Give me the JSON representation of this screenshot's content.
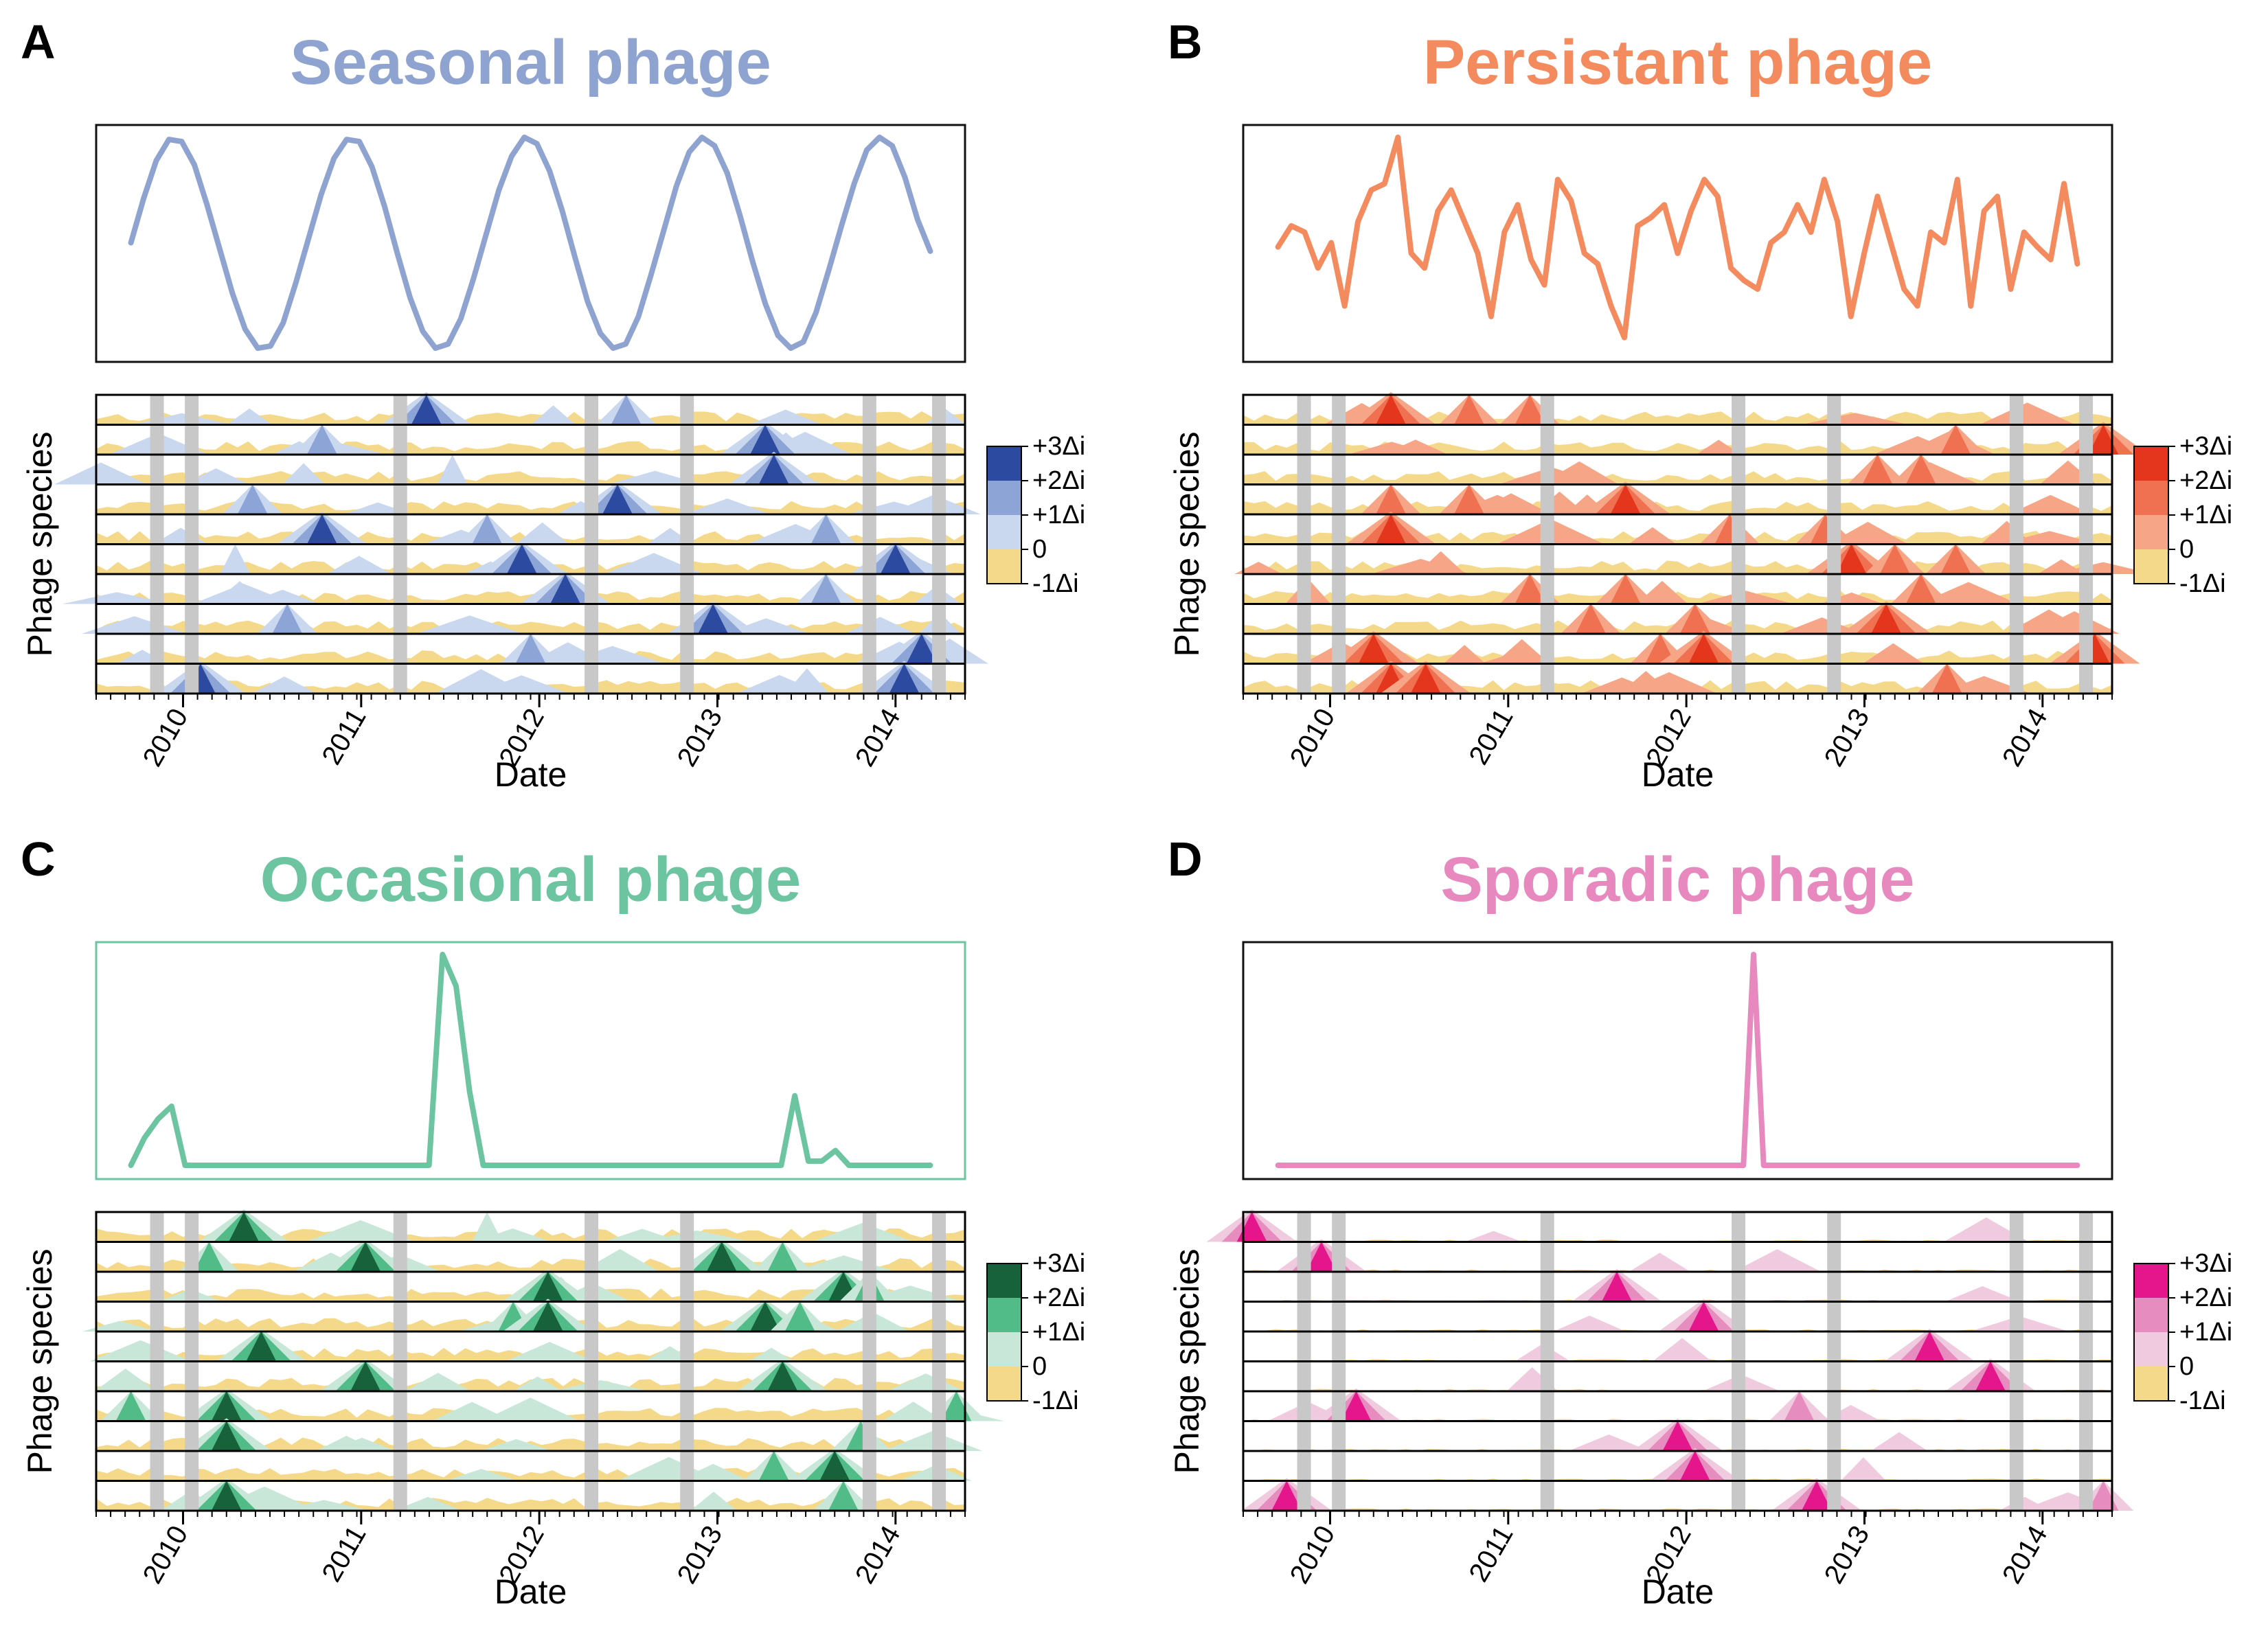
{
  "figure": {
    "legend_labels": [
      "+3Δi",
      "+2Δi",
      "+1Δi",
      "0",
      "-1Δi"
    ],
    "y_label": "Phage species",
    "x_label": "Date"
  },
  "chart_data": [
    {
      "panel": "A",
      "type": "line",
      "title": "Seasonal phage",
      "color": "#8ea3d0",
      "line_values": [
        0.5,
        0.71,
        0.89,
        0.99,
        0.98,
        0.87,
        0.68,
        0.47,
        0.26,
        0.09,
        0.0,
        0.01,
        0.12,
        0.31,
        0.52,
        0.73,
        0.9,
        0.99,
        0.98,
        0.86,
        0.67,
        0.45,
        0.24,
        0.08,
        0.0,
        0.02,
        0.14,
        0.33,
        0.54,
        0.75,
        0.91,
        1.0,
        0.97,
        0.84,
        0.65,
        0.43,
        0.22,
        0.07,
        0.0,
        0.02,
        0.15,
        0.35,
        0.56,
        0.77,
        0.93,
        1.0,
        0.96,
        0.83,
        0.63,
        0.41,
        0.21,
        0.06,
        0.0,
        0.03,
        0.17,
        0.37,
        0.58,
        0.78,
        0.94,
        1.0,
        0.96,
        0.81,
        0.61,
        0.46
      ],
      "x_ticks": [
        "2010",
        "2011",
        "2012",
        "2013",
        "2014"
      ],
      "heatmap": {
        "palette": [
          "#f5d98a",
          "#c9d7ef",
          "#8da5d6",
          "#2c4aa0"
        ],
        "n_species": 10,
        "gray_bands": [
          0.07,
          0.11,
          0.35,
          0.57,
          0.68,
          0.89,
          0.97
        ],
        "peaks": [
          [
            0,
            0.38,
            3
          ],
          [
            0,
            0.61,
            2
          ],
          [
            1,
            0.77,
            3
          ],
          [
            1,
            0.26,
            2
          ],
          [
            2,
            0.78,
            3
          ],
          [
            2,
            0.41,
            1
          ],
          [
            3,
            0.6,
            3
          ],
          [
            3,
            0.18,
            2
          ],
          [
            4,
            0.26,
            3
          ],
          [
            4,
            0.45,
            2
          ],
          [
            4,
            0.84,
            2
          ],
          [
            5,
            0.49,
            3
          ],
          [
            5,
            0.16,
            1
          ],
          [
            5,
            0.92,
            3
          ],
          [
            6,
            0.54,
            3
          ],
          [
            6,
            0.84,
            2
          ],
          [
            7,
            0.71,
            3
          ],
          [
            7,
            0.22,
            2
          ],
          [
            8,
            0.5,
            2
          ],
          [
            8,
            0.95,
            3
          ],
          [
            9,
            0.12,
            3
          ],
          [
            9,
            0.93,
            3
          ]
        ]
      }
    },
    {
      "panel": "B",
      "type": "line",
      "title": "Persistant phage",
      "color": "#f38b5f",
      "line_values": [
        0.48,
        0.58,
        0.55,
        0.38,
        0.5,
        0.2,
        0.6,
        0.75,
        0.78,
        1.0,
        0.45,
        0.38,
        0.65,
        0.75,
        0.6,
        0.45,
        0.15,
        0.55,
        0.68,
        0.42,
        0.3,
        0.8,
        0.7,
        0.45,
        0.4,
        0.2,
        0.05,
        0.58,
        0.62,
        0.68,
        0.45,
        0.65,
        0.8,
        0.72,
        0.38,
        0.32,
        0.28,
        0.5,
        0.55,
        0.68,
        0.55,
        0.8,
        0.6,
        0.15,
        0.45,
        0.72,
        0.5,
        0.28,
        0.2,
        0.55,
        0.5,
        0.8,
        0.2,
        0.65,
        0.72,
        0.28,
        0.55,
        0.48,
        0.42,
        0.78,
        0.4
      ],
      "x_ticks": [
        "2010",
        "2011",
        "2012",
        "2013",
        "2014"
      ],
      "heatmap": {
        "palette": [
          "#f5d98a",
          "#f6a586",
          "#ef7152",
          "#e3361c"
        ],
        "n_species": 10,
        "gray_bands": [
          0.07,
          0.11,
          0.35,
          0.57,
          0.68,
          0.89,
          0.97
        ],
        "peaks": [
          [
            0,
            0.17,
            3
          ],
          [
            0,
            0.26,
            2
          ],
          [
            0,
            0.33,
            2
          ],
          [
            1,
            0.82,
            2
          ],
          [
            1,
            0.99,
            3
          ],
          [
            2,
            0.73,
            2
          ],
          [
            2,
            0.78,
            2
          ],
          [
            3,
            0.26,
            2
          ],
          [
            3,
            0.44,
            3
          ],
          [
            3,
            0.17,
            2
          ],
          [
            4,
            0.17,
            3
          ],
          [
            4,
            0.56,
            2
          ],
          [
            4,
            0.67,
            2
          ],
          [
            5,
            0.7,
            3
          ],
          [
            5,
            0.75,
            2
          ],
          [
            5,
            0.82,
            2
          ],
          [
            6,
            0.33,
            2
          ],
          [
            6,
            0.44,
            2
          ],
          [
            6,
            0.78,
            2
          ],
          [
            7,
            0.4,
            2
          ],
          [
            7,
            0.52,
            2
          ],
          [
            7,
            0.74,
            3
          ],
          [
            8,
            0.15,
            3
          ],
          [
            8,
            0.48,
            2
          ],
          [
            8,
            0.53,
            3
          ],
          [
            8,
            0.98,
            3
          ],
          [
            9,
            0.17,
            3
          ],
          [
            9,
            0.21,
            3
          ],
          [
            9,
            0.81,
            2
          ]
        ]
      }
    },
    {
      "panel": "C",
      "type": "line",
      "title": "Occasional phage",
      "color": "#6cc4a1",
      "line_values": [
        0.0,
        0.13,
        0.22,
        0.28,
        0.0,
        0.0,
        0.0,
        0.0,
        0.0,
        0.0,
        0.0,
        0.0,
        0.0,
        0.0,
        0.0,
        0.0,
        0.0,
        0.0,
        0.0,
        0.0,
        0.0,
        0.0,
        0.0,
        1.0,
        0.85,
        0.35,
        0.0,
        0.0,
        0.0,
        0.0,
        0.0,
        0.0,
        0.0,
        0.0,
        0.0,
        0.0,
        0.0,
        0.0,
        0.0,
        0.0,
        0.0,
        0.0,
        0.0,
        0.0,
        0.0,
        0.0,
        0.0,
        0.0,
        0.0,
        0.33,
        0.02,
        0.02,
        0.07,
        0.0,
        0.0,
        0.0,
        0.0,
        0.0,
        0.0,
        0.0
      ],
      "x_ticks": [
        "2010",
        "2011",
        "2012",
        "2013",
        "2014"
      ],
      "heatmap": {
        "palette": [
          "#f5d98a",
          "#c9e7d8",
          "#52bc88",
          "#17613b"
        ],
        "n_species": 10,
        "gray_bands": [
          0.07,
          0.11,
          0.35,
          0.57,
          0.68,
          0.89,
          0.97
        ],
        "peaks": [
          [
            0,
            0.17,
            3
          ],
          [
            0,
            0.45,
            1
          ],
          [
            1,
            0.13,
            2
          ],
          [
            1,
            0.31,
            3
          ],
          [
            1,
            0.72,
            3
          ],
          [
            1,
            0.79,
            2
          ],
          [
            2,
            0.52,
            3
          ],
          [
            2,
            0.86,
            3
          ],
          [
            2,
            0.89,
            2
          ],
          [
            3,
            0.48,
            2
          ],
          [
            3,
            0.52,
            3
          ],
          [
            3,
            0.77,
            3
          ],
          [
            3,
            0.81,
            2
          ],
          [
            4,
            0.19,
            3
          ],
          [
            5,
            0.31,
            3
          ],
          [
            5,
            0.79,
            3
          ],
          [
            6,
            0.04,
            2
          ],
          [
            6,
            0.15,
            3
          ],
          [
            6,
            0.99,
            2
          ],
          [
            7,
            0.15,
            3
          ],
          [
            7,
            0.88,
            2
          ],
          [
            8,
            0.85,
            3
          ],
          [
            8,
            0.78,
            2
          ],
          [
            9,
            0.15,
            3
          ],
          [
            9,
            0.86,
            2
          ]
        ]
      }
    },
    {
      "panel": "D",
      "type": "line",
      "title": "Sporadic phage",
      "color": "#e789be",
      "line_values": [
        0.0,
        0.0,
        0.0,
        0.0,
        0.0,
        0.0,
        0.0,
        0.0,
        0.0,
        0.0,
        0.0,
        0.0,
        0.0,
        0.0,
        0.0,
        0.0,
        0.0,
        0.0,
        0.0,
        0.0,
        0.0,
        0.0,
        0.0,
        0.0,
        0.0,
        0.0,
        0.0,
        0.0,
        0.0,
        0.0,
        0.0,
        0.0,
        0.0,
        0.0,
        0.0,
        0.0,
        0.0,
        0.0,
        0.0,
        0.0,
        0.0,
        0.0,
        0.0,
        0.0,
        0.0,
        0.0,
        0.0,
        1.0,
        0.0,
        0.0,
        0.0,
        0.0,
        0.0,
        0.0,
        0.0,
        0.0,
        0.0,
        0.0,
        0.0,
        0.0,
        0.0,
        0.0,
        0.0,
        0.0,
        0.0,
        0.0,
        0.0,
        0.0,
        0.0,
        0.0,
        0.0,
        0.0,
        0.0,
        0.0,
        0.0,
        0.0,
        0.0,
        0.0,
        0.0,
        0.0
      ],
      "x_ticks": [
        "2010",
        "2011",
        "2012",
        "2013",
        "2014"
      ],
      "heatmap": {
        "palette": [
          "#f5d98a",
          "#f0cbe0",
          "#e78cbf",
          "#e5158c"
        ],
        "n_species": 10,
        "gray_bands": [
          0.07,
          0.11,
          0.35,
          0.57,
          0.68,
          0.89,
          0.97
        ],
        "peaks": [
          [
            0,
            0.01,
            3
          ],
          [
            1,
            0.09,
            3
          ],
          [
            2,
            0.43,
            3
          ],
          [
            3,
            0.53,
            3
          ],
          [
            4,
            0.79,
            3
          ],
          [
            5,
            0.86,
            3
          ],
          [
            6,
            0.13,
            3
          ],
          [
            6,
            0.64,
            2
          ],
          [
            7,
            0.5,
            3
          ],
          [
            8,
            0.52,
            3
          ],
          [
            9,
            0.05,
            3
          ],
          [
            9,
            0.66,
            3
          ],
          [
            9,
            0.99,
            2
          ]
        ]
      }
    }
  ]
}
